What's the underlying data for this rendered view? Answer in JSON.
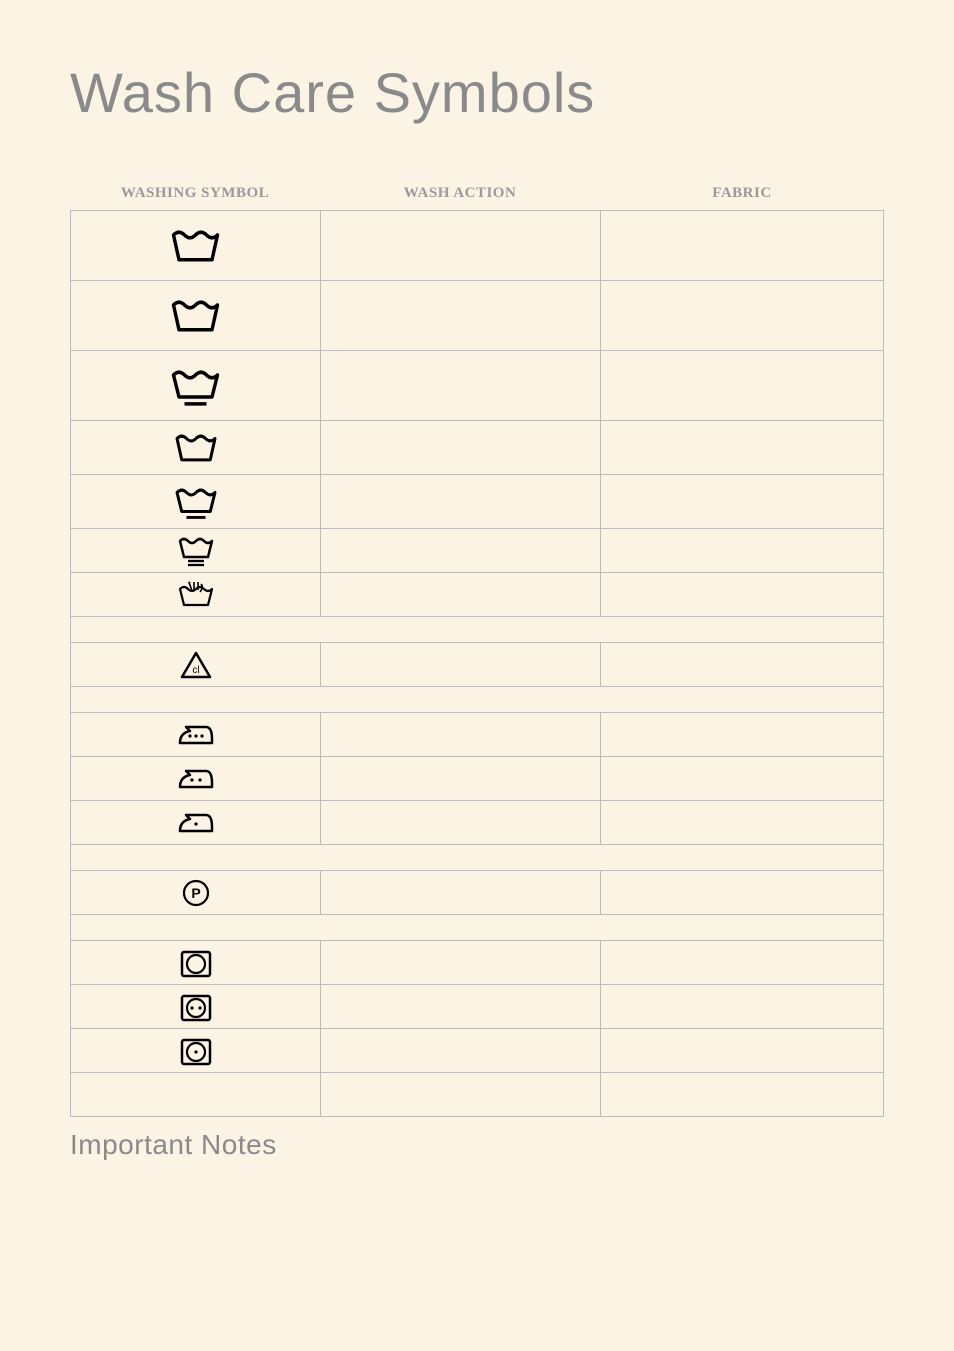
{
  "title": "Wash Care Symbols",
  "columns": {
    "symbol": "WASHING SYMBOL",
    "action": "WASH ACTION",
    "fabric": "FABRIC"
  },
  "section_footer": "Important Notes",
  "colors": {
    "page_bg": "#fbf3e4",
    "title_text": "#8a8a8a",
    "header_text": "#9a9a9a",
    "border": "#bbbbbb",
    "icon_stroke": "#000000"
  },
  "typography": {
    "title_font": "Impact",
    "title_fontsize": 56,
    "header_font": "Georgia",
    "header_fontsize": 15,
    "section_fontsize": 28
  },
  "rows": [
    {
      "type": "data",
      "height": "tall",
      "icon": "washtub",
      "action": "",
      "fabric": ""
    },
    {
      "type": "data",
      "height": "tall",
      "icon": "washtub",
      "action": "",
      "fabric": ""
    },
    {
      "type": "data",
      "height": "tall",
      "icon": "washtub-bar1",
      "action": "",
      "fabric": ""
    },
    {
      "type": "data",
      "height": "med",
      "icon": "washtub",
      "action": "",
      "fabric": ""
    },
    {
      "type": "data",
      "height": "med",
      "icon": "washtub-bar1",
      "action": "",
      "fabric": ""
    },
    {
      "type": "data",
      "height": "short",
      "icon": "washtub-bar2",
      "action": "",
      "fabric": ""
    },
    {
      "type": "data",
      "height": "short",
      "icon": "handwash",
      "action": "",
      "fabric": ""
    },
    {
      "type": "sep"
    },
    {
      "type": "data",
      "height": "short",
      "icon": "bleach-cl",
      "action": "",
      "fabric": ""
    },
    {
      "type": "sep"
    },
    {
      "type": "data",
      "height": "short",
      "icon": "iron-3dot",
      "action": "",
      "fabric": ""
    },
    {
      "type": "data",
      "height": "short",
      "icon": "iron-2dot",
      "action": "",
      "fabric": ""
    },
    {
      "type": "data",
      "height": "short",
      "icon": "iron-1dot",
      "action": "",
      "fabric": ""
    },
    {
      "type": "sep"
    },
    {
      "type": "data",
      "height": "short",
      "icon": "dryclean-p",
      "action": "",
      "fabric": ""
    },
    {
      "type": "sep"
    },
    {
      "type": "data",
      "height": "short",
      "icon": "tumble",
      "action": "",
      "fabric": ""
    },
    {
      "type": "data",
      "height": "short",
      "icon": "tumble-2dot",
      "action": "",
      "fabric": ""
    },
    {
      "type": "data",
      "height": "short",
      "icon": "tumble-1dot",
      "action": "",
      "fabric": ""
    },
    {
      "type": "data",
      "height": "short",
      "icon": "",
      "action": "",
      "fabric": ""
    }
  ]
}
